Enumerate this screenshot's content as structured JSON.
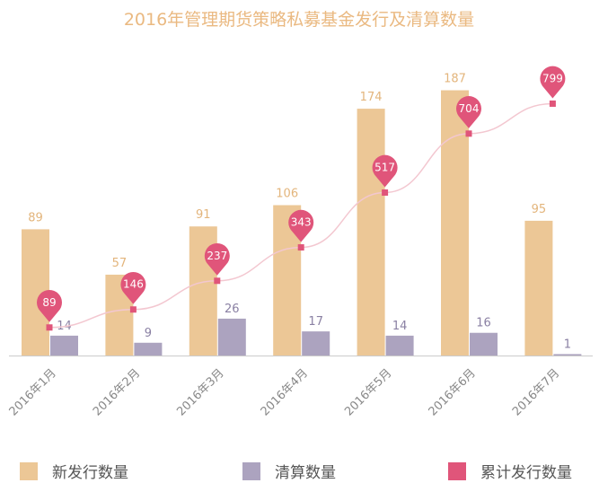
{
  "chart_data": {
    "type": "bar",
    "title": "2016年管理期货策略私募基金发行及清算数量",
    "categories": [
      "2016年1月",
      "2016年2月",
      "2016年3月",
      "2016年4月",
      "2016年5月",
      "2016年6月",
      "2016年7月"
    ],
    "series": [
      {
        "name": "新发行数量",
        "type": "bar",
        "values": [
          89,
          57,
          91,
          106,
          174,
          187,
          95
        ]
      },
      {
        "name": "清算数量",
        "type": "bar",
        "values": [
          14,
          9,
          26,
          17,
          14,
          16,
          1
        ]
      },
      {
        "name": "累计发行数量",
        "type": "line",
        "values": [
          89,
          146,
          237,
          343,
          517,
          704,
          799
        ]
      }
    ],
    "ylim_bars": [
      0,
      200
    ],
    "ylim_line": [
      0,
      900
    ],
    "legend_position": "bottom",
    "grid": false,
    "colors": {
      "new": "#ecc796",
      "cleared": "#aca3bf",
      "cumulative": "#e0557a",
      "cumulative_line": "#f3c7d0",
      "title": "#eab981",
      "new_label": "#e3b57c",
      "cleared_label": "#8a80a3"
    }
  }
}
